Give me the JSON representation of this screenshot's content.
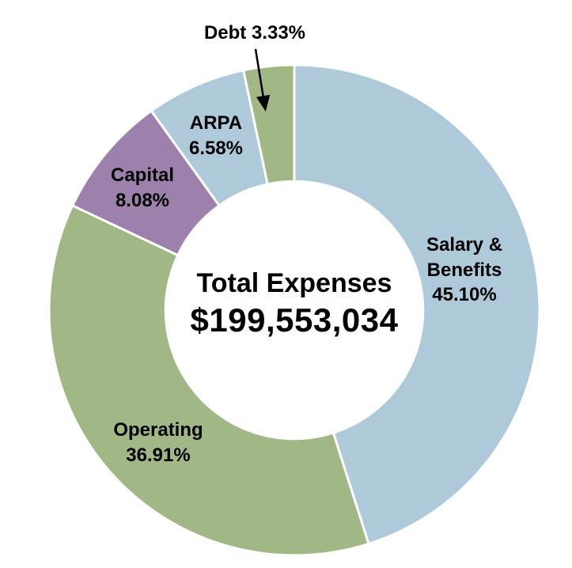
{
  "chart_data": {
    "type": "pie",
    "subtype": "donut",
    "title": "Total Expenses",
    "center_text": {
      "title": "Total Expenses",
      "value": "$199,553,034"
    },
    "total_value": 199553034,
    "start_angle_deg": 0,
    "direction": "clockwise",
    "inner_radius_ratio": 0.525,
    "background_color": "#ffffff",
    "gap_color": "#ffffff",
    "legend": "none",
    "segments": [
      {
        "label": "Salary & Benefits",
        "percent": 45.1,
        "color": "#adc9da"
      },
      {
        "label": "Operating",
        "percent": 36.91,
        "color": "#a1b886"
      },
      {
        "label": "Capital",
        "percent": 8.08,
        "color": "#9d80ab"
      },
      {
        "label": "ARPA",
        "percent": 6.58,
        "color": "#adc9da"
      },
      {
        "label": "Debt",
        "percent": 3.33,
        "color": "#a1b886"
      }
    ],
    "labels": {
      "debt": [
        "Debt 3.33%"
      ],
      "arpa": [
        "ARPA",
        "6.58%"
      ],
      "capital": [
        "Capital",
        "8.08%"
      ],
      "salary": [
        "Salary &",
        "Benefits",
        "45.10%"
      ],
      "operating": [
        "Operating",
        "36.91%"
      ]
    },
    "callouts": [
      {
        "target": "Debt",
        "text": "Debt 3.33%",
        "style": "arrow"
      }
    ]
  }
}
